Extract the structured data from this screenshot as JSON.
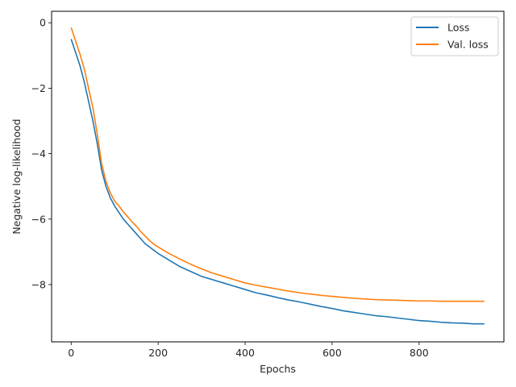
{
  "chart_data": {
    "type": "line",
    "title": "",
    "xlabel": "Epochs",
    "ylabel": "Negative log-likelihood",
    "xlim": [
      -45,
      995
    ],
    "ylim": [
      -9.75,
      0.35
    ],
    "xticks": [
      0,
      200,
      400,
      600,
      800
    ],
    "yticks": [
      0,
      -2,
      -4,
      -6,
      -8
    ],
    "grid": false,
    "legend_position": "top-right",
    "series": [
      {
        "name": "Loss",
        "color": "#1f77b4",
        "x": [
          0,
          10,
          20,
          30,
          40,
          50,
          60,
          70,
          80,
          90,
          100,
          110,
          120,
          130,
          140,
          150,
          160,
          170,
          180,
          190,
          200,
          225,
          250,
          275,
          300,
          325,
          350,
          375,
          400,
          425,
          450,
          475,
          500,
          525,
          550,
          575,
          600,
          625,
          650,
          675,
          700,
          725,
          750,
          775,
          800,
          825,
          850,
          875,
          900,
          925,
          950
        ],
        "y": [
          -0.5,
          -0.9,
          -1.3,
          -1.8,
          -2.4,
          -3.0,
          -3.7,
          -4.5,
          -5.0,
          -5.35,
          -5.6,
          -5.8,
          -6.0,
          -6.15,
          -6.3,
          -6.45,
          -6.6,
          -6.75,
          -6.85,
          -6.95,
          -7.05,
          -7.25,
          -7.45,
          -7.6,
          -7.75,
          -7.85,
          -7.95,
          -8.05,
          -8.15,
          -8.25,
          -8.32,
          -8.4,
          -8.47,
          -8.53,
          -8.6,
          -8.67,
          -8.73,
          -8.8,
          -8.85,
          -8.9,
          -8.95,
          -8.98,
          -9.02,
          -9.06,
          -9.1,
          -9.12,
          -9.15,
          -9.17,
          -9.18,
          -9.2,
          -9.2
        ]
      },
      {
        "name": "Val. loss",
        "color": "#ff7f0e",
        "x": [
          0,
          10,
          20,
          30,
          40,
          50,
          60,
          70,
          80,
          90,
          100,
          110,
          120,
          130,
          140,
          150,
          160,
          170,
          180,
          190,
          200,
          225,
          250,
          275,
          300,
          325,
          350,
          375,
          400,
          425,
          450,
          475,
          500,
          525,
          550,
          575,
          600,
          625,
          650,
          675,
          700,
          725,
          750,
          775,
          800,
          825,
          850,
          875,
          900,
          925,
          950
        ],
        "y": [
          -0.15,
          -0.55,
          -0.95,
          -1.4,
          -2.0,
          -2.6,
          -3.4,
          -4.3,
          -4.85,
          -5.2,
          -5.45,
          -5.6,
          -5.78,
          -5.93,
          -6.08,
          -6.22,
          -6.38,
          -6.52,
          -6.65,
          -6.77,
          -6.85,
          -7.05,
          -7.22,
          -7.38,
          -7.52,
          -7.65,
          -7.75,
          -7.85,
          -7.95,
          -8.02,
          -8.08,
          -8.14,
          -8.2,
          -8.25,
          -8.29,
          -8.33,
          -8.36,
          -8.39,
          -8.42,
          -8.44,
          -8.46,
          -8.47,
          -8.48,
          -8.49,
          -8.5,
          -8.5,
          -8.51,
          -8.51,
          -8.51,
          -8.51,
          -8.51
        ]
      }
    ]
  }
}
